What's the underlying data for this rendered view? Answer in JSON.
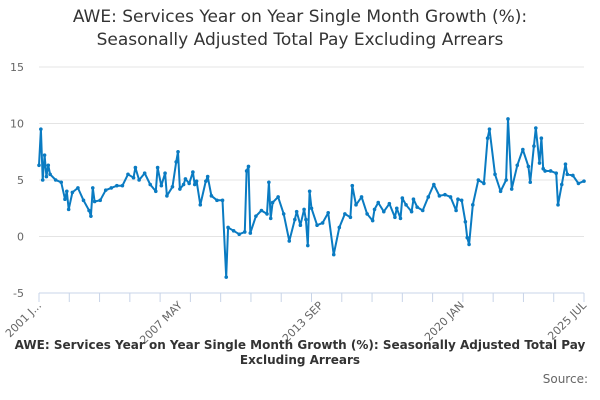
{
  "chart_data": {
    "type": "line",
    "title": [
      "AWE: Services Year on Year Single Month Growth (%):",
      "Seasonally Adjusted Total Pay Excluding Arrears"
    ],
    "xlabel": "",
    "ylabel": "",
    "ylim": [
      -5,
      15
    ],
    "yticks": [
      -5,
      0,
      5,
      10,
      15
    ],
    "xlim": [
      "2001-01",
      "2025-07"
    ],
    "xtick_labels": [
      {
        "label": "2001 J...",
        "date": "2001-01"
      },
      {
        "label": "2007 MAY",
        "date": "2007-05"
      },
      {
        "label": "2013 SEP",
        "date": "2013-09"
      },
      {
        "label": "2020 JAN",
        "date": "2020-01"
      },
      {
        "label": "2025 JUL",
        "date": "2025-07"
      }
    ],
    "grid": true,
    "legend_position": "bottom",
    "color": "#0a7bc2",
    "series": [
      {
        "name": "AWE: Services Year on Year Single Month Growth (%): Seasonally Adjusted Total Pay Excluding Arrears",
        "points": [
          [
            "2001-01",
            6.3
          ],
          [
            "2001-02",
            9.5
          ],
          [
            "2001-03",
            5.0
          ],
          [
            "2001-04",
            7.2
          ],
          [
            "2001-05",
            5.3
          ],
          [
            "2001-06",
            6.3
          ],
          [
            "2001-07",
            5.5
          ],
          [
            "2001-10",
            5.0
          ],
          [
            "2002-01",
            4.8
          ],
          [
            "2002-03",
            3.3
          ],
          [
            "2002-04",
            4.0
          ],
          [
            "2002-05",
            2.4
          ],
          [
            "2002-07",
            3.9
          ],
          [
            "2002-10",
            4.3
          ],
          [
            "2003-01",
            3.2
          ],
          [
            "2003-04",
            2.3
          ],
          [
            "2003-05",
            1.8
          ],
          [
            "2003-06",
            4.3
          ],
          [
            "2003-07",
            3.1
          ],
          [
            "2003-10",
            3.2
          ],
          [
            "2004-01",
            4.1
          ],
          [
            "2004-04",
            4.3
          ],
          [
            "2004-07",
            4.5
          ],
          [
            "2004-10",
            4.5
          ],
          [
            "2005-01",
            5.5
          ],
          [
            "2005-04",
            5.2
          ],
          [
            "2005-05",
            6.1
          ],
          [
            "2005-07",
            5.0
          ],
          [
            "2005-10",
            5.6
          ],
          [
            "2006-01",
            4.6
          ],
          [
            "2006-04",
            4.0
          ],
          [
            "2006-05",
            6.1
          ],
          [
            "2006-07",
            4.5
          ],
          [
            "2006-09",
            5.6
          ],
          [
            "2006-10",
            3.6
          ],
          [
            "2007-01",
            4.4
          ],
          [
            "2007-03",
            6.6
          ],
          [
            "2007-04",
            7.5
          ],
          [
            "2007-05",
            4.2
          ],
          [
            "2007-07",
            4.6
          ],
          [
            "2007-08",
            5.1
          ],
          [
            "2007-10",
            4.7
          ],
          [
            "2007-12",
            5.7
          ],
          [
            "2008-01",
            4.6
          ],
          [
            "2008-02",
            4.9
          ],
          [
            "2008-04",
            2.8
          ],
          [
            "2008-07",
            4.9
          ],
          [
            "2008-08",
            5.3
          ],
          [
            "2008-10",
            3.6
          ],
          [
            "2009-01",
            3.2
          ],
          [
            "2009-04",
            3.2
          ],
          [
            "2009-06",
            -3.6
          ],
          [
            "2009-07",
            0.8
          ],
          [
            "2009-10",
            0.5
          ],
          [
            "2010-01",
            0.2
          ],
          [
            "2010-04",
            0.4
          ],
          [
            "2010-05",
            5.8
          ],
          [
            "2010-06",
            6.2
          ],
          [
            "2010-07",
            0.3
          ],
          [
            "2010-10",
            1.8
          ],
          [
            "2011-01",
            2.3
          ],
          [
            "2011-04",
            2.0
          ],
          [
            "2011-05",
            4.8
          ],
          [
            "2011-06",
            1.6
          ],
          [
            "2011-07",
            3.0
          ],
          [
            "2011-10",
            3.5
          ],
          [
            "2012-01",
            2.0
          ],
          [
            "2012-04",
            -0.4
          ],
          [
            "2012-07",
            1.5
          ],
          [
            "2012-08",
            2.2
          ],
          [
            "2012-10",
            1.0
          ],
          [
            "2012-12",
            2.4
          ],
          [
            "2013-01",
            1.5
          ],
          [
            "2013-02",
            -0.8
          ],
          [
            "2013-03",
            4.0
          ],
          [
            "2013-04",
            2.5
          ],
          [
            "2013-07",
            1.0
          ],
          [
            "2013-10",
            1.2
          ],
          [
            "2014-01",
            2.1
          ],
          [
            "2014-04",
            -1.6
          ],
          [
            "2014-07",
            0.8
          ],
          [
            "2014-10",
            2.0
          ],
          [
            "2015-01",
            1.7
          ],
          [
            "2015-02",
            4.5
          ],
          [
            "2015-04",
            2.8
          ],
          [
            "2015-07",
            3.5
          ],
          [
            "2015-10",
            2.0
          ],
          [
            "2016-01",
            1.4
          ],
          [
            "2016-02",
            2.4
          ],
          [
            "2016-04",
            3.0
          ],
          [
            "2016-07",
            2.2
          ],
          [
            "2016-10",
            2.9
          ],
          [
            "2017-01",
            1.7
          ],
          [
            "2017-02",
            2.5
          ],
          [
            "2017-04",
            1.6
          ],
          [
            "2017-05",
            3.4
          ],
          [
            "2017-07",
            2.8
          ],
          [
            "2017-10",
            2.2
          ],
          [
            "2017-11",
            3.3
          ],
          [
            "2018-01",
            2.6
          ],
          [
            "2018-04",
            2.3
          ],
          [
            "2018-07",
            3.5
          ],
          [
            "2018-10",
            4.6
          ],
          [
            "2019-01",
            3.6
          ],
          [
            "2019-04",
            3.7
          ],
          [
            "2019-07",
            3.5
          ],
          [
            "2019-10",
            2.3
          ],
          [
            "2019-11",
            3.3
          ],
          [
            "2020-01",
            3.2
          ],
          [
            "2020-03",
            1.3
          ],
          [
            "2020-04",
            -0.1
          ],
          [
            "2020-05",
            -0.7
          ],
          [
            "2020-07",
            2.8
          ],
          [
            "2020-10",
            5.0
          ],
          [
            "2021-01",
            4.7
          ],
          [
            "2021-03",
            8.7
          ],
          [
            "2021-04",
            9.5
          ],
          [
            "2021-07",
            5.5
          ],
          [
            "2021-10",
            4.0
          ],
          [
            "2022-01",
            5.0
          ],
          [
            "2022-02",
            10.4
          ],
          [
            "2022-04",
            4.2
          ],
          [
            "2022-07",
            6.3
          ],
          [
            "2022-10",
            7.7
          ],
          [
            "2023-01",
            6.2
          ],
          [
            "2023-02",
            4.8
          ],
          [
            "2023-04",
            8.0
          ],
          [
            "2023-05",
            9.6
          ],
          [
            "2023-07",
            6.5
          ],
          [
            "2023-08",
            8.7
          ],
          [
            "2023-09",
            6.0
          ],
          [
            "2023-10",
            5.8
          ],
          [
            "2024-01",
            5.8
          ],
          [
            "2024-04",
            5.6
          ],
          [
            "2024-05",
            2.8
          ],
          [
            "2024-07",
            4.6
          ],
          [
            "2024-09",
            6.4
          ],
          [
            "2024-10",
            5.5
          ],
          [
            "2025-01",
            5.4
          ],
          [
            "2025-04",
            4.7
          ],
          [
            "2025-07",
            4.9
          ]
        ]
      }
    ]
  },
  "footer": {
    "legend_text": "AWE: Services Year on Year Single Month Growth (%): Seasonally Adjusted Total Pay Excluding Arrears",
    "source_label": "Source:"
  }
}
